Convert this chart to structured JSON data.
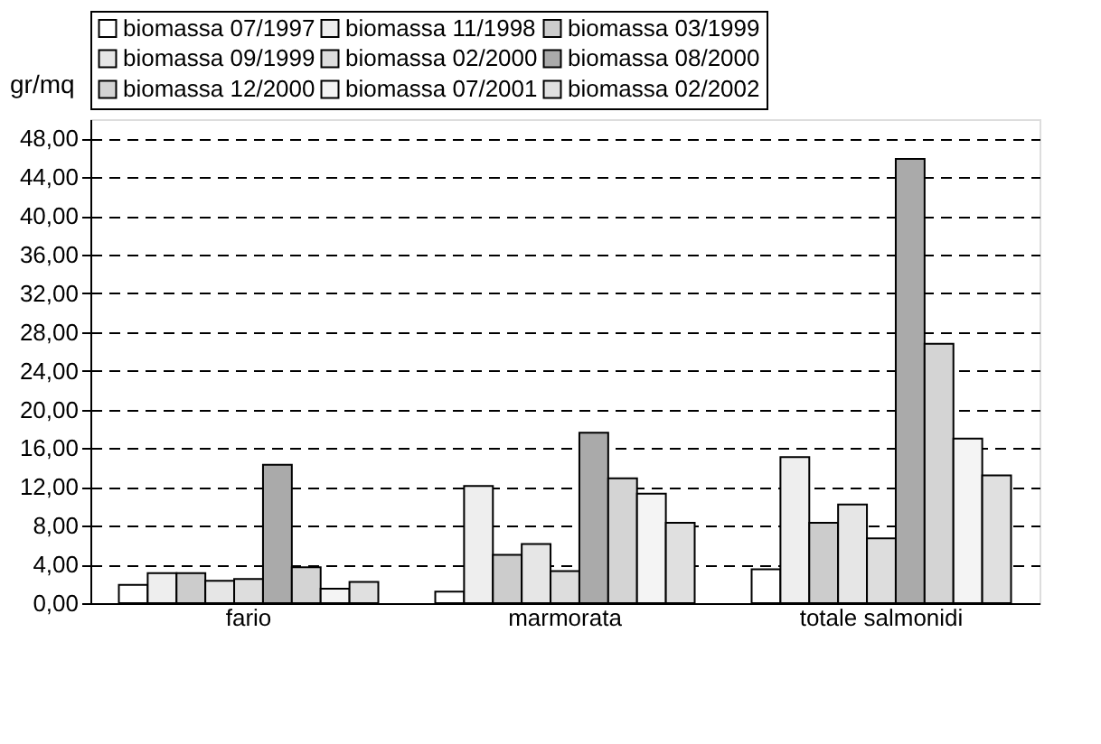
{
  "chart_data": {
    "type": "bar",
    "ylabel": "gr/mq",
    "categories": [
      "fario",
      "marmorata",
      "totale salmonidi"
    ],
    "series": [
      {
        "name": "biomassa 07/1997",
        "color": "#ffffff",
        "values": [
          1.9,
          1.2,
          3.5
        ]
      },
      {
        "name": "biomassa 11/1998",
        "color": "#eeeeee",
        "values": [
          3.1,
          12.1,
          15.1
        ]
      },
      {
        "name": "biomassa 03/1999",
        "color": "#cccccc",
        "values": [
          3.1,
          5.0,
          8.3
        ]
      },
      {
        "name": "biomassa 09/1999",
        "color": "#e6e6e6",
        "values": [
          2.3,
          6.1,
          10.2
        ]
      },
      {
        "name": "biomassa 02/2000",
        "color": "#dddddd",
        "values": [
          2.5,
          3.3,
          6.7
        ]
      },
      {
        "name": "biomassa 08/2000",
        "color": "#aaaaaa",
        "values": [
          14.3,
          17.6,
          45.9
        ]
      },
      {
        "name": "biomassa 12/2000",
        "color": "#d4d4d4",
        "values": [
          3.7,
          12.9,
          26.8
        ]
      },
      {
        "name": "biomassa 07/2001",
        "color": "#f4f4f4",
        "values": [
          1.5,
          11.3,
          17.0
        ]
      },
      {
        "name": "biomassa 02/2002",
        "color": "#e0e0e0",
        "values": [
          2.2,
          8.3,
          13.2
        ]
      }
    ],
    "ylim": [
      0,
      50
    ],
    "yticks": [
      {
        "value": 0,
        "label": "0,00"
      },
      {
        "value": 4,
        "label": "4,00"
      },
      {
        "value": 8,
        "label": "8,00"
      },
      {
        "value": 12,
        "label": "12,00"
      },
      {
        "value": 16,
        "label": "16,00"
      },
      {
        "value": 20,
        "label": "20,00"
      },
      {
        "value": 24,
        "label": "24,00"
      },
      {
        "value": 28,
        "label": "28,00"
      },
      {
        "value": 32,
        "label": "32,00"
      },
      {
        "value": 36,
        "label": "36,00"
      },
      {
        "value": 40,
        "label": "40,00"
      },
      {
        "value": 44,
        "label": "44,00"
      },
      {
        "value": 48,
        "label": "48,00"
      }
    ],
    "grid": "y",
    "legend": "top"
  }
}
